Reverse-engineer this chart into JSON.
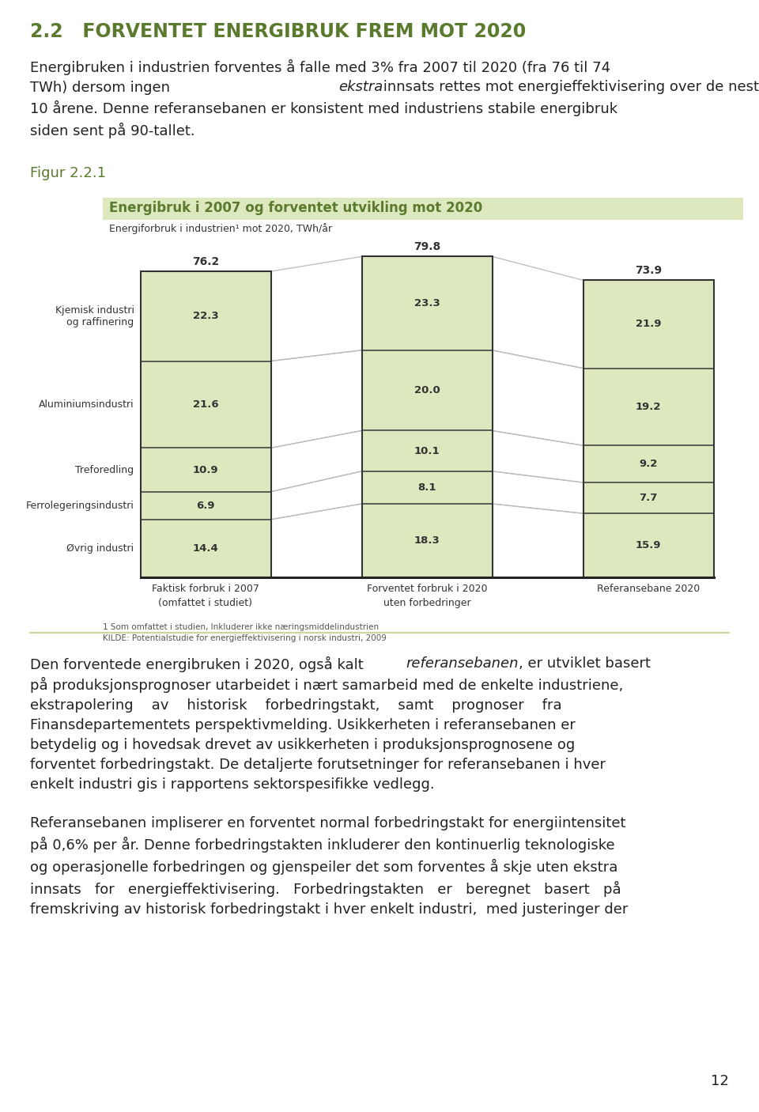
{
  "page_title": "2.2   FORVENTET ENERGIBRUK FREM MOT 2020",
  "para1": "Energibruken i industrien forventes å falle med 3% fra 2007 til 2020 (fra 76 til 74 TWh) dersom ingen ekstra innsats rettes mot energieffektivisering over de neste 10 årene. Denne referansebanen er konsistent med industriens stabile energibruk siden sent på 90-tallet.",
  "para1_italic": "ekstra",
  "figur_label": "Figur 2.2.1",
  "chart_title": "Energibruk i 2007 og forventet utvikling mot 2020",
  "chart_subtitle": "Energiforbruk i industrien¹ mot 2020, TWh/år",
  "columns": [
    "Faktisk forbruk i 2007\n(omfattet i studiet)",
    "Forventet forbruk i 2020\nuten forbedringer",
    "Referansebane 2020"
  ],
  "totals": [
    76.2,
    79.8,
    73.9
  ],
  "categories": [
    "Kjemisk industri\nog raffinering",
    "Aluminiumsindustri",
    "Treforedling",
    "Ferrolegeringsindustri",
    "Øvrig industri"
  ],
  "values": [
    [
      22.3,
      21.6,
      10.9,
      6.9,
      14.4
    ],
    [
      23.3,
      20.0,
      10.1,
      8.1,
      18.3
    ],
    [
      21.9,
      19.2,
      9.2,
      7.7,
      15.9
    ]
  ],
  "bar_color": "#dde8bf",
  "separator_color": "#555555",
  "connector_color": "#bbbbbb",
  "title_color": "#5a7a2e",
  "header_bg_color": "#dde8bf",
  "footnote1": "1 Som omfattet i studien, Inkluderer ikke næringsmiddelindustrien",
  "footnote2": "KILDE: Potentialstudie for energieffektivisering i norsk industri, 2009",
  "para2_pre": "Den forventede energibruken i 2020, også kalt ",
  "para2_italic": "referansebanen",
  "para2_post": ", er utviklet basert på produksjonsprognoser utarbeidet i nært samarbeid med de enkelte industriene, ekstrapolering av historisk forbedringstakt, samt prognoser fra Finansdepartementets perspektivmelding. Usikkerheten i referansebanen er betydelig og i hovedsak drevet av usikkerheten i produksjonsprognosene og forventet forbedringstakt. De detaljerte forutsetninger for referansebanen i hver enkelt industri gis i rapportens sektorspesifikke vedlegg.",
  "para3": "Referansebanen impliserer en forventet normal forbedringstakt for energiintensitet på 0,6% per år. Denne forbedringstakten inkluderer den kontinuerlig teknologiske og operasjonelle forbedringen og gjenspeiler det som forventes å skje uten ekstra innsats for energieffektivisering. Forbedringstakten er beregnet basert på fremskriving av historisk forbedringstakt i hver enkelt industri,  med justeringer der",
  "page_number": "12"
}
